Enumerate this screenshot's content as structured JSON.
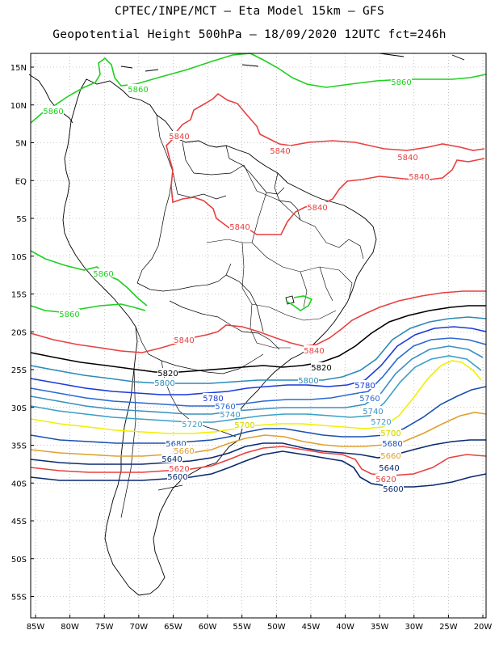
{
  "title_line1": "CPTEC/INPE/MCT –  Eta Model 15km – GFS",
  "title_line2": "Geopotential Height 500hPa – 18/09/2020 12UTC fct=246h",
  "lat_labels": [
    "15N",
    "10N",
    "5N",
    "EQ",
    "5S",
    "10S",
    "15S",
    "20S",
    "25S",
    "30S",
    "35S",
    "40S",
    "45S",
    "50S",
    "55S"
  ],
  "lon_labels": [
    "85W",
    "80W",
    "75W",
    "70W",
    "65W",
    "60W",
    "55W",
    "50W",
    "45W",
    "40W",
    "35W",
    "30W",
    "25W",
    "20W"
  ],
  "colors": {
    "c5860": "#1ed01e",
    "c5840": "#e84040",
    "c5820": "#000000",
    "c5800": "#2a8ab8",
    "c5780": "#1a3adc",
    "c5760": "#2a6ad0",
    "c5740": "#3a90c0",
    "c5720": "#3aa0c8",
    "c5700": "#f0f000",
    "c5680": "#1a50b0",
    "c5660": "#e0a030",
    "c5640": "#0a2a70",
    "c5620": "#e84040",
    "c5600": "#0a2a70",
    "border": "#000000",
    "grid": "#9a9a9a"
  },
  "contour_labels": [
    {
      "text": "5860",
      "color": "c5860"
    },
    {
      "text": "5860",
      "color": "c5860"
    },
    {
      "text": "5860",
      "color": "c5860"
    },
    {
      "text": "5860",
      "color": "c5860"
    },
    {
      "text": "5860",
      "color": "c5860"
    },
    {
      "text": "5840",
      "color": "c5840"
    },
    {
      "text": "5840",
      "color": "c5840"
    },
    {
      "text": "5840",
      "color": "c5840"
    },
    {
      "text": "5840",
      "color": "c5840"
    },
    {
      "text": "5840",
      "color": "c5840"
    },
    {
      "text": "5840",
      "color": "c5840"
    },
    {
      "text": "5840",
      "color": "c5840"
    },
    {
      "text": "5840",
      "color": "c5840"
    },
    {
      "text": "5820",
      "color": "c5820"
    },
    {
      "text": "5820",
      "color": "c5820"
    },
    {
      "text": "5800",
      "color": "c5800"
    },
    {
      "text": "5800",
      "color": "c5800"
    },
    {
      "text": "5780",
      "color": "c5780"
    },
    {
      "text": "5780",
      "color": "c5780"
    },
    {
      "text": "5760",
      "color": "c5760"
    },
    {
      "text": "5760",
      "color": "c5760"
    },
    {
      "text": "5740",
      "color": "c5740"
    },
    {
      "text": "5740",
      "color": "c5740"
    },
    {
      "text": "5720",
      "color": "c5720"
    },
    {
      "text": "5720",
      "color": "c5720"
    },
    {
      "text": "5700",
      "color": "c5700"
    },
    {
      "text": "5700",
      "color": "c5700"
    },
    {
      "text": "5680",
      "color": "c5680"
    },
    {
      "text": "5680",
      "color": "c5680"
    },
    {
      "text": "5660",
      "color": "c5660"
    },
    {
      "text": "5660",
      "color": "c5660"
    },
    {
      "text": "5640",
      "color": "c5640"
    },
    {
      "text": "5640",
      "color": "c5640"
    },
    {
      "text": "5620",
      "color": "c5620"
    },
    {
      "text": "5620",
      "color": "c5620"
    },
    {
      "text": "5600",
      "color": "c5600"
    },
    {
      "text": "5600",
      "color": "c5600"
    }
  ]
}
